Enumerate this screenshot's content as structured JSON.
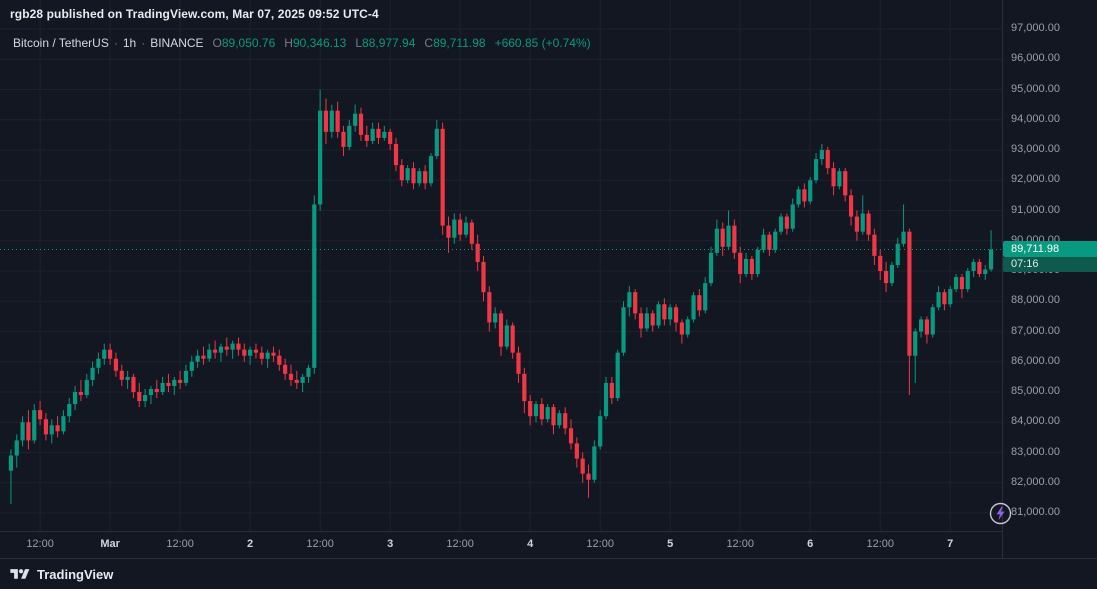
{
  "attribution": "rgb28 published on TradingView.com, Mar 07, 2025 09:52 UTC-4",
  "legend": {
    "symbol": "Bitcoin / TetherUS",
    "separator": "·",
    "interval": "1h",
    "exchange": "BINANCE",
    "ohlc": [
      {
        "label": "O",
        "value": "89,050.76"
      },
      {
        "label": "H",
        "value": "90,346.13"
      },
      {
        "label": "L",
        "value": "88,977.94"
      },
      {
        "label": "C",
        "value": "89,711.98"
      }
    ],
    "change": "+660.85 (+0.74%)"
  },
  "price_axis": {
    "labels": [
      "97,000.00",
      "96,000.00",
      "95,000.00",
      "94,000.00",
      "93,000.00",
      "92,000.00",
      "91,000.00",
      "90,000.00",
      "89,000.00",
      "88,000.00",
      "87,000.00",
      "86,000.00",
      "85,000.00",
      "84,000.00",
      "83,000.00",
      "82,000.00",
      "81,000.00"
    ]
  },
  "price_line": {
    "label": "89,711.98",
    "countdown": "07:16"
  },
  "footer": {
    "brand": "TradingView"
  },
  "icons": {
    "footer_logo": "tradingview-logo",
    "boost": "lightning-bolt-icon"
  },
  "colors": {
    "background": "#131722",
    "grid": "#1e222d",
    "up": "#089981",
    "down": "#f23645",
    "axis_text": "#9b9fab",
    "major_text": "#d1d4dc",
    "muted_text": "#787b86",
    "badge_bg": "#089981",
    "countdown_bg": "#0e5a4e",
    "border": "#2a2e39",
    "boost_purple": "#8f5ff0"
  },
  "chart_data": {
    "type": "candlestick",
    "symbol": "Bitcoin / TetherUS",
    "exchange": "BINANCE",
    "interval": "1h",
    "axis": {
      "min": 81000,
      "max": 97000,
      "step": 1000
    },
    "current_price": 89711.98,
    "last_candle": {
      "open": 89050.76,
      "high": 90346.13,
      "low": 88977.94,
      "close": 89711.98,
      "change": 660.85,
      "change_pct": 0.74
    },
    "x_labels": [
      {
        "text": "12:00",
        "index": 5,
        "major": false
      },
      {
        "text": "Mar",
        "index": 17,
        "major": true
      },
      {
        "text": "12:00",
        "index": 29,
        "major": false
      },
      {
        "text": "2",
        "index": 41,
        "major": true
      },
      {
        "text": "12:00",
        "index": 53,
        "major": false
      },
      {
        "text": "3",
        "index": 65,
        "major": true
      },
      {
        "text": "12:00",
        "index": 77,
        "major": false
      },
      {
        "text": "4",
        "index": 89,
        "major": true
      },
      {
        "text": "12:00",
        "index": 101,
        "major": false
      },
      {
        "text": "5",
        "index": 113,
        "major": true
      },
      {
        "text": "12:00",
        "index": 125,
        "major": false
      },
      {
        "text": "6",
        "index": 137,
        "major": true
      },
      {
        "text": "12:00",
        "index": 149,
        "major": false
      },
      {
        "text": "7",
        "index": 161,
        "major": true
      }
    ],
    "candle_format": "[open, high, low, close] hourly, values approximate except last",
    "candles": [
      [
        82400,
        83100,
        81300,
        82900
      ],
      [
        82900,
        83600,
        82500,
        83400
      ],
      [
        83400,
        84200,
        83200,
        84000
      ],
      [
        84000,
        84400,
        83100,
        83400
      ],
      [
        83400,
        84600,
        83300,
        84400
      ],
      [
        84400,
        84700,
        83900,
        84100
      ],
      [
        84100,
        84300,
        83400,
        83600
      ],
      [
        83600,
        84100,
        83300,
        83900
      ],
      [
        83900,
        84200,
        83500,
        83700
      ],
      [
        83700,
        84400,
        83600,
        84200
      ],
      [
        84200,
        84800,
        84000,
        84600
      ],
      [
        84600,
        85200,
        84400,
        85000
      ],
      [
        85000,
        85400,
        84700,
        84900
      ],
      [
        84900,
        85600,
        84800,
        85400
      ],
      [
        85400,
        86000,
        85200,
        85800
      ],
      [
        85800,
        86300,
        85600,
        86100
      ],
      [
        86100,
        86600,
        85900,
        86400
      ],
      [
        86400,
        86600,
        85900,
        86100
      ],
      [
        86100,
        86300,
        85500,
        85700
      ],
      [
        85700,
        85900,
        85200,
        85400
      ],
      [
        85400,
        85700,
        85100,
        85500
      ],
      [
        85500,
        85600,
        84800,
        85000
      ],
      [
        85000,
        85300,
        84500,
        84700
      ],
      [
        84700,
        85100,
        84500,
        84900
      ],
      [
        84900,
        85200,
        84600,
        85100
      ],
      [
        85100,
        85400,
        84800,
        85000
      ],
      [
        85000,
        85500,
        84900,
        85300
      ],
      [
        85300,
        85600,
        85000,
        85200
      ],
      [
        85200,
        85500,
        84900,
        85400
      ],
      [
        85400,
        85700,
        85100,
        85300
      ],
      [
        85300,
        85900,
        85200,
        85700
      ],
      [
        85700,
        86200,
        85500,
        86000
      ],
      [
        86000,
        86400,
        85800,
        86200
      ],
      [
        86200,
        86500,
        85900,
        86100
      ],
      [
        86100,
        86600,
        86000,
        86400
      ],
      [
        86400,
        86700,
        86100,
        86300
      ],
      [
        86300,
        86600,
        86000,
        86500
      ],
      [
        86500,
        86800,
        86200,
        86400
      ],
      [
        86400,
        86700,
        86100,
        86600
      ],
      [
        86600,
        86800,
        86200,
        86400
      ],
      [
        86400,
        86600,
        86000,
        86200
      ],
      [
        86200,
        86500,
        85900,
        86400
      ],
      [
        86400,
        86600,
        86100,
        86300
      ],
      [
        86300,
        86500,
        85900,
        86100
      ],
      [
        86100,
        86400,
        85800,
        86300
      ],
      [
        86300,
        86500,
        86000,
        86200
      ],
      [
        86200,
        86400,
        85700,
        85900
      ],
      [
        85900,
        86100,
        85400,
        85600
      ],
      [
        85600,
        85900,
        85200,
        85400
      ],
      [
        85400,
        85700,
        85100,
        85300
      ],
      [
        85300,
        85600,
        85000,
        85500
      ],
      [
        85500,
        85900,
        85300,
        85800
      ],
      [
        85800,
        91500,
        85600,
        91200
      ],
      [
        91200,
        95000,
        91000,
        94300
      ],
      [
        94300,
        94700,
        93200,
        93600
      ],
      [
        93600,
        94500,
        93400,
        94300
      ],
      [
        94300,
        94600,
        93400,
        93600
      ],
      [
        93600,
        93800,
        92800,
        93100
      ],
      [
        93100,
        94000,
        93000,
        93800
      ],
      [
        93800,
        94500,
        93600,
        94200
      ],
      [
        94200,
        94400,
        93300,
        93500
      ],
      [
        93500,
        93800,
        93100,
        93300
      ],
      [
        93300,
        93900,
        93200,
        93700
      ],
      [
        93700,
        93900,
        93200,
        93400
      ],
      [
        93400,
        93800,
        93300,
        93600
      ],
      [
        93600,
        93700,
        93000,
        93200
      ],
      [
        93200,
        93400,
        92300,
        92500
      ],
      [
        92500,
        92700,
        91800,
        92000
      ],
      [
        92000,
        92500,
        91900,
        92400
      ],
      [
        92400,
        92600,
        91700,
        91900
      ],
      [
        91900,
        92400,
        91800,
        92300
      ],
      [
        92300,
        92500,
        91700,
        91900
      ],
      [
        91900,
        92900,
        91800,
        92800
      ],
      [
        92800,
        94000,
        92700,
        93700
      ],
      [
        93700,
        93900,
        90200,
        90500
      ],
      [
        90500,
        90800,
        89600,
        90100
      ],
      [
        90100,
        90900,
        89900,
        90700
      ],
      [
        90700,
        90900,
        90000,
        90200
      ],
      [
        90200,
        90800,
        90100,
        90600
      ],
      [
        90600,
        90700,
        89700,
        89900
      ],
      [
        89900,
        90200,
        89000,
        89300
      ],
      [
        89300,
        89500,
        88000,
        88300
      ],
      [
        88300,
        88500,
        87000,
        87300
      ],
      [
        87300,
        87800,
        87100,
        87600
      ],
      [
        87600,
        87700,
        86200,
        86500
      ],
      [
        86500,
        87400,
        86400,
        87200
      ],
      [
        87200,
        87300,
        86100,
        86300
      ],
      [
        86300,
        86500,
        85300,
        85600
      ],
      [
        85600,
        85800,
        84300,
        84700
      ],
      [
        84700,
        84900,
        83900,
        84200
      ],
      [
        84200,
        84700,
        84000,
        84600
      ],
      [
        84600,
        84800,
        83900,
        84100
      ],
      [
        84100,
        84600,
        84000,
        84500
      ],
      [
        84500,
        84600,
        83600,
        83900
      ],
      [
        83900,
        84400,
        83800,
        84300
      ],
      [
        84300,
        84500,
        83600,
        83800
      ],
      [
        83800,
        84100,
        83100,
        83300
      ],
      [
        83300,
        83500,
        82500,
        82800
      ],
      [
        82800,
        83000,
        82000,
        82300
      ],
      [
        82300,
        82600,
        81500,
        82100
      ],
      [
        82100,
        83400,
        82000,
        83200
      ],
      [
        83200,
        84400,
        83100,
        84200
      ],
      [
        84200,
        85500,
        84100,
        85300
      ],
      [
        85300,
        85500,
        84600,
        84800
      ],
      [
        84800,
        86400,
        84700,
        86300
      ],
      [
        86300,
        88000,
        86200,
        87800
      ],
      [
        87800,
        88500,
        87500,
        88300
      ],
      [
        88300,
        88400,
        87400,
        87600
      ],
      [
        87600,
        87800,
        86800,
        87100
      ],
      [
        87100,
        87800,
        87000,
        87600
      ],
      [
        87600,
        87700,
        87000,
        87200
      ],
      [
        87200,
        88000,
        87100,
        87900
      ],
      [
        87900,
        88100,
        87200,
        87400
      ],
      [
        87400,
        87900,
        87200,
        87800
      ],
      [
        87800,
        87900,
        87000,
        87300
      ],
      [
        87300,
        87400,
        86600,
        86900
      ],
      [
        86900,
        87500,
        86800,
        87400
      ],
      [
        87400,
        88300,
        87300,
        88200
      ],
      [
        88200,
        88400,
        87500,
        87700
      ],
      [
        87700,
        88800,
        87600,
        88600
      ],
      [
        88600,
        89800,
        88500,
        89600
      ],
      [
        89600,
        90700,
        89500,
        90400
      ],
      [
        90400,
        90600,
        89500,
        89800
      ],
      [
        89800,
        91000,
        89700,
        90500
      ],
      [
        90500,
        90700,
        89400,
        89600
      ],
      [
        89600,
        89800,
        88600,
        88900
      ],
      [
        88900,
        89600,
        88800,
        89400
      ],
      [
        89400,
        89500,
        88700,
        88900
      ],
      [
        88900,
        89800,
        88800,
        89700
      ],
      [
        89700,
        90400,
        89600,
        90200
      ],
      [
        90200,
        90300,
        89500,
        89700
      ],
      [
        89700,
        90400,
        89600,
        90300
      ],
      [
        90300,
        90900,
        90200,
        90800
      ],
      [
        90800,
        90900,
        90200,
        90400
      ],
      [
        90400,
        91400,
        90300,
        91200
      ],
      [
        91200,
        91800,
        91100,
        91700
      ],
      [
        91700,
        91900,
        91100,
        91300
      ],
      [
        91300,
        92100,
        91200,
        92000
      ],
      [
        92000,
        92900,
        91900,
        92700
      ],
      [
        92700,
        93200,
        92500,
        93000
      ],
      [
        93000,
        93100,
        92200,
        92400
      ],
      [
        92400,
        92600,
        91500,
        91800
      ],
      [
        91800,
        92400,
        91700,
        92300
      ],
      [
        92300,
        92400,
        91300,
        91500
      ],
      [
        91500,
        91700,
        90500,
        90800
      ],
      [
        90800,
        91000,
        90000,
        90300
      ],
      [
        90300,
        91500,
        90200,
        90900
      ],
      [
        90900,
        91000,
        90000,
        90200
      ],
      [
        90200,
        90400,
        89200,
        89500
      ],
      [
        89500,
        89700,
        88700,
        89000
      ],
      [
        89000,
        89300,
        88300,
        88600
      ],
      [
        88600,
        89300,
        88500,
        89200
      ],
      [
        89200,
        90100,
        89100,
        89900
      ],
      [
        89900,
        91200,
        89800,
        90300
      ],
      [
        90300,
        90400,
        84900,
        86200
      ],
      [
        86200,
        87100,
        85300,
        87000
      ],
      [
        87000,
        87500,
        86800,
        87400
      ],
      [
        87400,
        87500,
        86600,
        86900
      ],
      [
        86900,
        87900,
        86800,
        87800
      ],
      [
        87800,
        88500,
        87700,
        88300
      ],
      [
        88300,
        88400,
        87700,
        87900
      ],
      [
        87900,
        88500,
        87800,
        88400
      ],
      [
        88400,
        88900,
        88300,
        88800
      ],
      [
        88800,
        88900,
        88100,
        88400
      ],
      [
        88400,
        89100,
        88300,
        89000
      ],
      [
        89000,
        89400,
        88800,
        89300
      ],
      [
        89300,
        89400,
        88800,
        88900
      ],
      [
        88900,
        89200,
        88700,
        89050.76
      ],
      [
        89050.76,
        90346.13,
        88977.94,
        89711.98
      ]
    ]
  }
}
